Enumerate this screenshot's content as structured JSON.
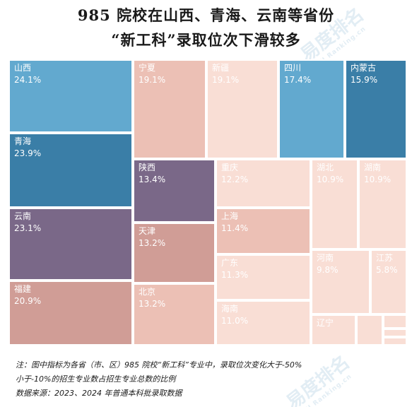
{
  "title_line1": "985 院校在山西、青海、云南等省份",
  "title_line2": "“新工科”录取位次下滑较多",
  "watermark": {
    "brand": "易度排名",
    "domain": "EDU Ranking.cn"
  },
  "chart_data": {
    "type": "treemap",
    "cells": [
      {
        "name": "山西",
        "label": "24.1%",
        "value": 24.1,
        "color": "#62a9cf",
        "text_color": "#ffffff"
      },
      {
        "name": "青海",
        "label": "23.9%",
        "value": 23.9,
        "color": "#3a7ea7",
        "text_color": "#ffffff"
      },
      {
        "name": "云南",
        "label": "23.1%",
        "value": 23.1,
        "color": "#7a6888",
        "text_color": "#ffffff"
      },
      {
        "name": "福建",
        "label": "20.9%",
        "value": 20.9,
        "color": "#d09d96",
        "text_color": "#ffffff"
      },
      {
        "name": "宁夏",
        "label": "19.1%",
        "value": 19.1,
        "color": "#ecc0b5",
        "text_color": "#ffffff"
      },
      {
        "name": "新疆",
        "label": "19.1%",
        "value": 19.1,
        "color": "#f9ded5",
        "text_color": "#ffffff"
      },
      {
        "name": "四川",
        "label": "17.4%",
        "value": 17.4,
        "color": "#62a9cf",
        "text_color": "#ffffff"
      },
      {
        "name": "内蒙古",
        "label": "15.9%",
        "value": 15.9,
        "color": "#3a7ea7",
        "text_color": "#ffffff"
      },
      {
        "name": "陕西",
        "label": "13.4%",
        "value": 13.4,
        "color": "#7a6888",
        "text_color": "#ffffff"
      },
      {
        "name": "天津",
        "label": "13.2%",
        "value": 13.2,
        "color": "#d09d96",
        "text_color": "#ffffff"
      },
      {
        "name": "北京",
        "label": "13.2%",
        "value": 13.2,
        "color": "#ecc0b5",
        "text_color": "#ffffff"
      },
      {
        "name": "重庆",
        "label": "12.2%",
        "value": 12.2,
        "color": "#f9ded5",
        "text_color": "#ffffff"
      },
      {
        "name": "上海",
        "label": "11.4%",
        "value": 11.4,
        "color": "#ecc0b5",
        "text_color": "#ffffff"
      },
      {
        "name": "广东",
        "label": "11.3%",
        "value": 11.3,
        "color": "#f9ded5",
        "text_color": "#ffffff"
      },
      {
        "name": "海南",
        "label": "11.0%",
        "value": 11.0,
        "color": "#f9ded5",
        "text_color": "#ffffff"
      },
      {
        "name": "湖北",
        "label": "10.9%",
        "value": 10.9,
        "color": "#f9ded5",
        "text_color": "#ffffff"
      },
      {
        "name": "湖南",
        "label": "10.9%",
        "value": 10.9,
        "color": "#f9ded5",
        "text_color": "#ffffff"
      },
      {
        "name": "河南",
        "label": "9.8%",
        "value": 9.8,
        "color": "#f9ded5",
        "text_color": "#ffffff"
      },
      {
        "name": "江苏",
        "label": "5.8%",
        "value": 5.8,
        "color": "#f9ded5",
        "text_color": "#ffffff"
      },
      {
        "name": "辽宁",
        "label": "",
        "value": null,
        "color": "#f9ded5",
        "text_color": "#ffffff"
      },
      {
        "name": "",
        "label": "",
        "value": null,
        "color": "#f9ded5",
        "text_color": "#ffffff"
      },
      {
        "name": "",
        "label": "",
        "value": null,
        "color": "#f9ded5",
        "text_color": "#ffffff"
      },
      {
        "name": "",
        "label": "",
        "value": null,
        "color": "#f9ded5",
        "text_color": "#ffffff"
      },
      {
        "name": "",
        "label": "",
        "value": null,
        "color": "#f9ded5",
        "text_color": "#ffffff"
      }
    ]
  },
  "notes": {
    "line1": "注：图中指标为各省（市、区）985 院校“新工科”专业中，录取位次变化大于-50%",
    "line2": "小于-10%的招生专业数占招生专业总数的比例",
    "line3": "数据来源：2023、2024 年普通本科批录取数据"
  }
}
